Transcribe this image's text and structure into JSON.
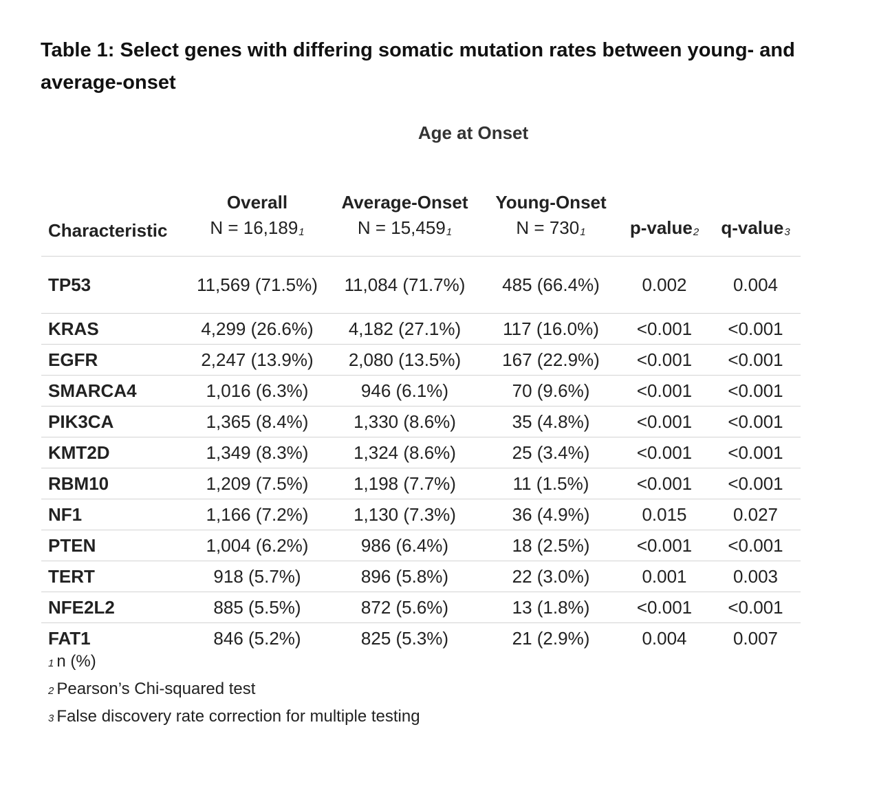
{
  "title": "Table 1: Select genes with differing somatic mutation rates between young- and average-onset",
  "spanner": "Age at Onset",
  "columns": {
    "characteristic": "Characteristic",
    "overall": {
      "label": "Overall",
      "n": "N = 16,189",
      "note": "1"
    },
    "average": {
      "label": "Average-Onset",
      "n": "N = 15,459",
      "note": "1"
    },
    "young": {
      "label": "Young-Onset",
      "n": "N = 730",
      "note": "1"
    },
    "p": {
      "label": "p-value",
      "note": "2"
    },
    "q": {
      "label": "q-value",
      "note": "3"
    }
  },
  "rows": [
    {
      "gene": "TP53",
      "overall": "11,569 (71.5%)",
      "average": "11,084 (71.7%)",
      "young": "485 (66.4%)",
      "p": "0.002",
      "q": "0.004"
    },
    {
      "gene": "KRAS",
      "overall": "4,299 (26.6%)",
      "average": "4,182 (27.1%)",
      "young": "117 (16.0%)",
      "p": "<0.001",
      "q": "<0.001"
    },
    {
      "gene": "EGFR",
      "overall": "2,247 (13.9%)",
      "average": "2,080 (13.5%)",
      "young": "167 (22.9%)",
      "p": "<0.001",
      "q": "<0.001"
    },
    {
      "gene": "SMARCA4",
      "overall": "1,016 (6.3%)",
      "average": "946 (6.1%)",
      "young": "70 (9.6%)",
      "p": "<0.001",
      "q": "<0.001"
    },
    {
      "gene": "PIK3CA",
      "overall": "1,365 (8.4%)",
      "average": "1,330 (8.6%)",
      "young": "35 (4.8%)",
      "p": "<0.001",
      "q": "<0.001"
    },
    {
      "gene": "KMT2D",
      "overall": "1,349 (8.3%)",
      "average": "1,324 (8.6%)",
      "young": "25 (3.4%)",
      "p": "<0.001",
      "q": "<0.001"
    },
    {
      "gene": "RBM10",
      "overall": "1,209 (7.5%)",
      "average": "1,198 (7.7%)",
      "young": "11 (1.5%)",
      "p": "<0.001",
      "q": "<0.001"
    },
    {
      "gene": "NF1",
      "overall": "1,166 (7.2%)",
      "average": "1,130 (7.3%)",
      "young": "36 (4.9%)",
      "p": "0.015",
      "q": "0.027"
    },
    {
      "gene": "PTEN",
      "overall": "1,004 (6.2%)",
      "average": "986 (6.4%)",
      "young": "18 (2.5%)",
      "p": "<0.001",
      "q": "<0.001"
    },
    {
      "gene": "TERT",
      "overall": "918 (5.7%)",
      "average": "896 (5.8%)",
      "young": "22 (3.0%)",
      "p": "0.001",
      "q": "0.003"
    },
    {
      "gene": "NFE2L2",
      "overall": "885 (5.5%)",
      "average": "872 (5.6%)",
      "young": "13 (1.8%)",
      "p": "<0.001",
      "q": "<0.001"
    },
    {
      "gene": "FAT1",
      "overall": "846 (5.2%)",
      "average": "825 (5.3%)",
      "young": "21 (2.9%)",
      "p": "0.004",
      "q": "0.007"
    }
  ],
  "footnotes": [
    {
      "mark": "1",
      "text": "n (%)"
    },
    {
      "mark": "2",
      "text": "Pearson’s Chi-squared test"
    },
    {
      "mark": "3",
      "text": "False discovery rate correction for multiple testing"
    }
  ]
}
